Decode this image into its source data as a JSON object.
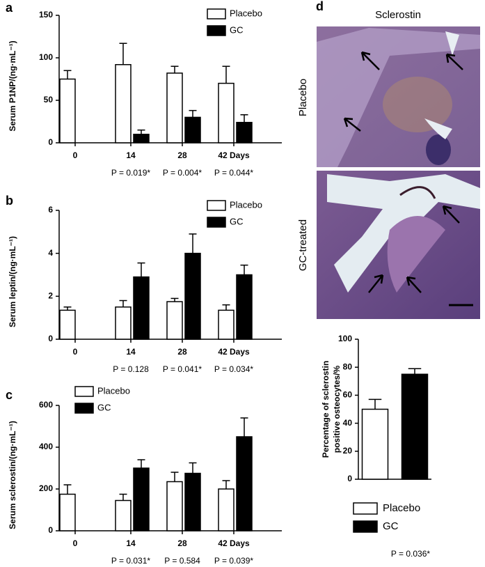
{
  "chart_data": [
    {
      "type": "bar",
      "panel_label": "a",
      "ylabel": "Serum P1NP/(ng·mL⁻¹)",
      "categories": [
        "0",
        "14",
        "28",
        "42 Days"
      ],
      "series": [
        {
          "name": "Placebo",
          "color": "#ffffff",
          "values": [
            75,
            92,
            82,
            70
          ],
          "errors": [
            10,
            25,
            8,
            20
          ]
        },
        {
          "name": "GC",
          "color": "#000000",
          "values": [
            null,
            10,
            30,
            24
          ],
          "errors": [
            null,
            5,
            8,
            9
          ]
        }
      ],
      "p_values": [
        null,
        "P = 0.019*",
        "P = 0.004*",
        "P = 0.044*"
      ],
      "ylim": [
        0,
        150
      ],
      "yticks": [
        0,
        50,
        100,
        150
      ],
      "legend": "top-right"
    },
    {
      "type": "bar",
      "panel_label": "b",
      "ylabel": "Serum leptin/(ng·mL⁻¹)",
      "categories": [
        "0",
        "14",
        "28",
        "42 Days"
      ],
      "series": [
        {
          "name": "Placebo",
          "color": "#ffffff",
          "values": [
            1.35,
            1.5,
            1.75,
            1.35
          ],
          "errors": [
            0.15,
            0.3,
            0.15,
            0.25
          ]
        },
        {
          "name": "GC",
          "color": "#000000",
          "values": [
            null,
            2.9,
            4.0,
            3.0
          ],
          "errors": [
            null,
            0.65,
            0.9,
            0.45
          ]
        }
      ],
      "p_values": [
        null,
        "P = 0.128",
        "P = 0.041*",
        "P = 0.034*"
      ],
      "ylim": [
        0,
        6
      ],
      "yticks": [
        0,
        2,
        4,
        6
      ],
      "legend": "top-right"
    },
    {
      "type": "bar",
      "panel_label": "c",
      "ylabel": "Serum sclerostin/(ng·mL⁻¹)",
      "categories": [
        "0",
        "14",
        "28",
        "42 Days"
      ],
      "series": [
        {
          "name": "Placebo",
          "color": "#ffffff",
          "values": [
            175,
            145,
            235,
            200
          ],
          "errors": [
            45,
            30,
            45,
            40
          ]
        },
        {
          "name": "GC",
          "color": "#000000",
          "values": [
            null,
            300,
            275,
            450
          ],
          "errors": [
            null,
            40,
            50,
            90
          ]
        }
      ],
      "p_values": [
        null,
        "P = 0.031*",
        "P = 0.584",
        "P = 0.039*"
      ],
      "ylim": [
        0,
        600
      ],
      "yticks": [
        0,
        200,
        400,
        600
      ],
      "legend": "top-left"
    },
    {
      "type": "bar",
      "ylabel": [
        "Percentage of sclerostin",
        "positive osteocytes/%"
      ],
      "series": [
        {
          "name": "Placebo",
          "color": "#ffffff",
          "values": [
            50
          ],
          "errors": [
            7
          ]
        },
        {
          "name": "GC",
          "color": "#000000",
          "values": [
            75
          ],
          "errors": [
            4
          ]
        }
      ],
      "p_value": "P = 0.036*",
      "ylim": [
        0,
        100
      ],
      "yticks": [
        0,
        20,
        40,
        60,
        80,
        100
      ],
      "legend": "bottom"
    }
  ],
  "micrograph": {
    "panel_label": "d",
    "title": "Sclerostin",
    "rows": [
      "Placebo",
      "GC-treated"
    ]
  }
}
